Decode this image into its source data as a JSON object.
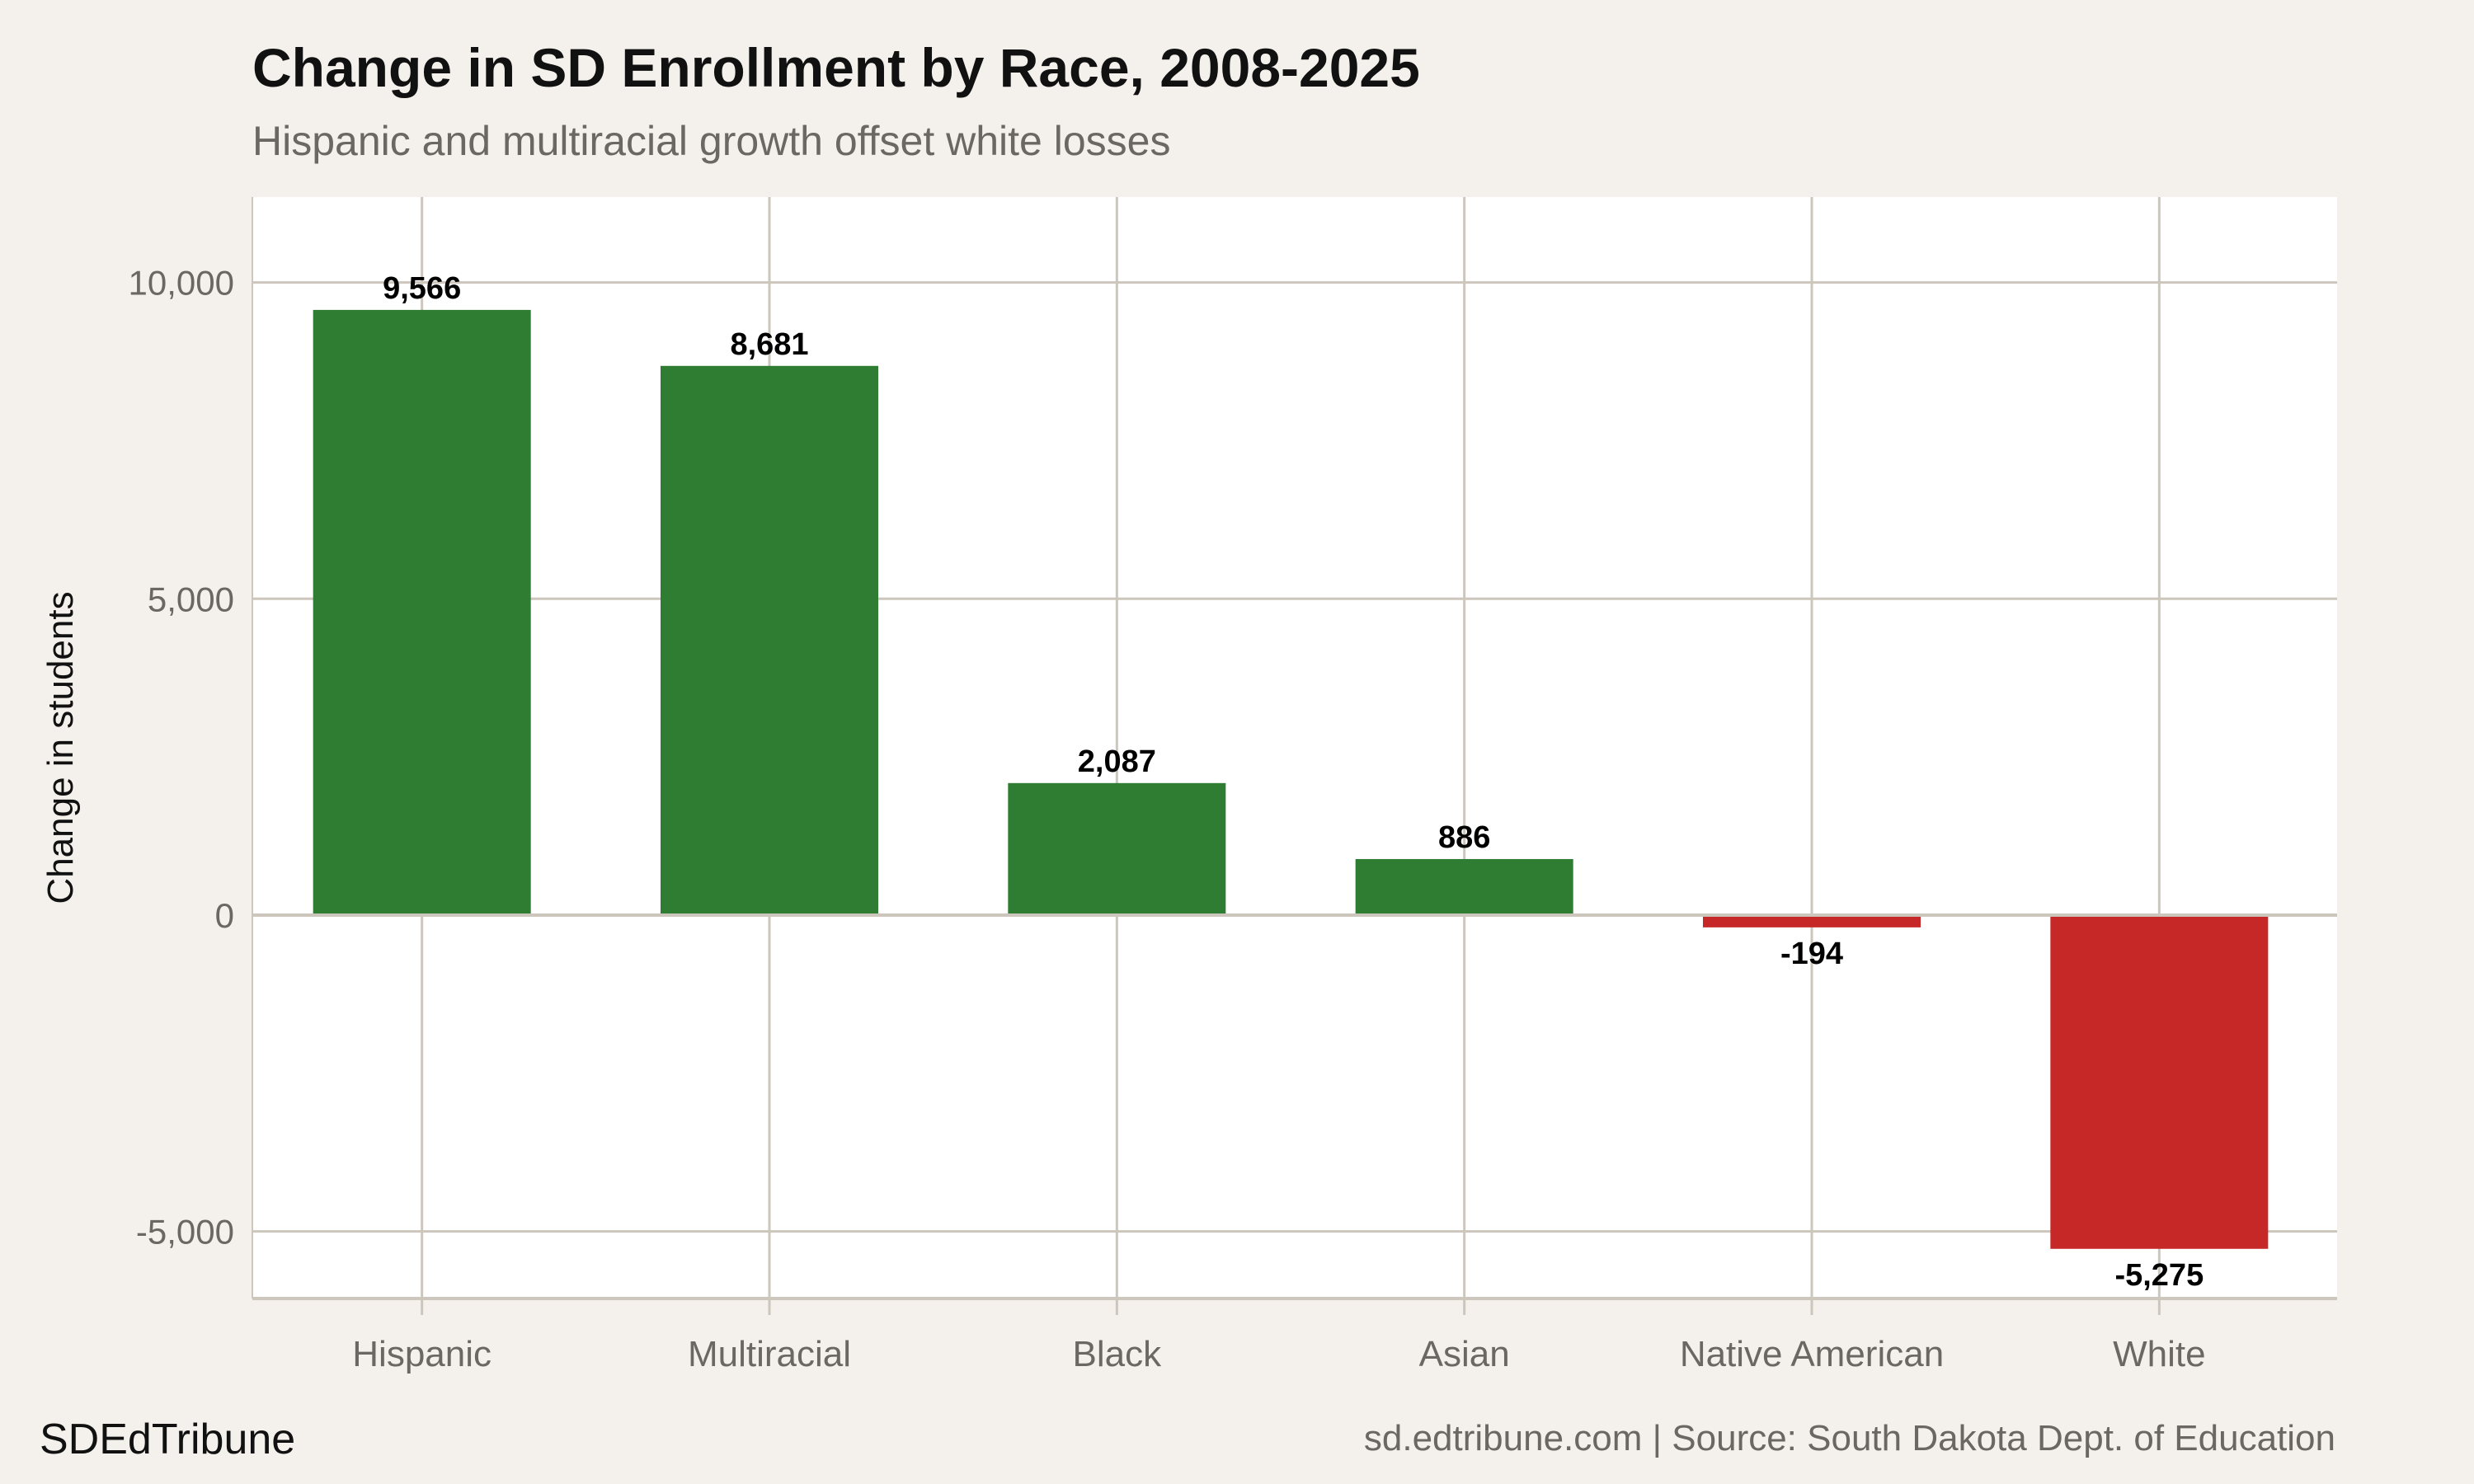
{
  "title": "Change in SD Enrollment by Race, 2008-2025",
  "subtitle": "Hispanic and multiracial growth offset white losses",
  "footer": {
    "brand": "SDEdTribune",
    "source": "sd.edtribune.com | Source: South Dakota Dept. of Education"
  },
  "colors": {
    "positive": "#2e7d32",
    "negative": "#c62828",
    "background": "#f4f1ec",
    "panel": "#ffffff",
    "grid": "#ccc6bc"
  },
  "chart_data": {
    "type": "bar",
    "categories": [
      "Hispanic",
      "Multiracial",
      "Black",
      "Asian",
      "Native American",
      "White"
    ],
    "values": [
      9566,
      8681,
      2087,
      886,
      -194,
      -5275
    ],
    "data_labels": [
      "9,566",
      "8,681",
      "2,087",
      "886",
      "-194",
      "-5,275"
    ],
    "xlabel": "",
    "ylabel": "Change in students",
    "ylim": [
      -6060,
      11350
    ],
    "yticks": [
      -5000,
      0,
      5000,
      10000
    ],
    "ytick_labels": [
      "-5,000",
      "0",
      "5,000",
      "10,000"
    ],
    "grid": true,
    "legend": "none"
  }
}
